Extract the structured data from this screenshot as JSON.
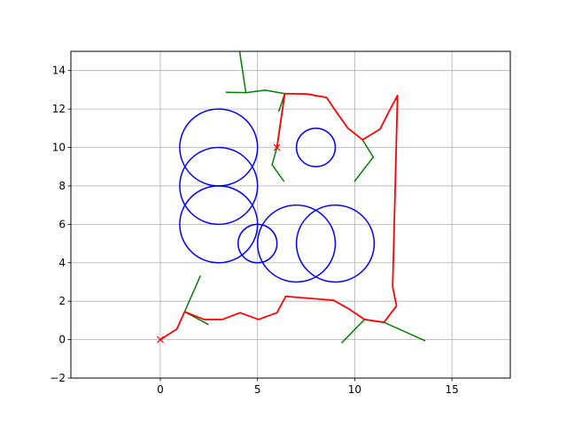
{
  "chart_data": {
    "type": "line",
    "title": "",
    "xlabel": "",
    "ylabel": "",
    "xlim": [
      -4.6,
      18.0
    ],
    "ylim": [
      -2,
      15
    ],
    "x_ticks": [
      0,
      5,
      10,
      15
    ],
    "y_ticks": [
      -2,
      0,
      2,
      4,
      6,
      8,
      10,
      12,
      14
    ],
    "x_tick_labels": [
      "0",
      "5",
      "10",
      "15"
    ],
    "y_tick_labels": [
      "−2",
      "0",
      "2",
      "4",
      "6",
      "8",
      "10",
      "12",
      "14"
    ],
    "grid": true,
    "legend": "none",
    "colors": {
      "circles": "#0000ff",
      "tree": "#008000",
      "path": "#ff0000",
      "grid": "#b0b0b0"
    },
    "obstacles": [
      {
        "cx": 3,
        "cy": 10,
        "r": 2
      },
      {
        "cx": 3,
        "cy": 8,
        "r": 2
      },
      {
        "cx": 3,
        "cy": 6,
        "r": 2
      },
      {
        "cx": 5,
        "cy": 5,
        "r": 1
      },
      {
        "cx": 7,
        "cy": 5,
        "r": 2
      },
      {
        "cx": 9,
        "cy": 5,
        "r": 2
      },
      {
        "cx": 8,
        "cy": 10,
        "r": 1
      }
    ],
    "start": {
      "x": 0,
      "y": 0
    },
    "goal": {
      "x": 6,
      "y": 10
    },
    "tree_edges": [
      [
        [
          4.05,
          15.2
        ],
        [
          4.4,
          12.85
        ]
      ],
      [
        [
          3.4,
          12.87
        ],
        [
          4.4,
          12.85
        ]
      ],
      [
        [
          4.4,
          12.85
        ],
        [
          5.4,
          12.98
        ]
      ],
      [
        [
          5.4,
          12.98
        ],
        [
          6.4,
          12.8
        ]
      ],
      [
        [
          6.4,
          12.8
        ],
        [
          6.1,
          11.9
        ]
      ],
      [
        [
          6.4,
          12.8
        ],
        [
          6.0,
          10.0
        ]
      ],
      [
        [
          6.0,
          10.0
        ],
        [
          5.75,
          9.1
        ]
      ],
      [
        [
          5.75,
          9.1
        ],
        [
          6.35,
          8.25
        ]
      ],
      [
        [
          10.4,
          10.4
        ],
        [
          10.95,
          9.5
        ]
      ],
      [
        [
          10.95,
          9.5
        ],
        [
          10.0,
          8.25
        ]
      ],
      [
        [
          1.25,
          1.45
        ],
        [
          2.05,
          3.3
        ]
      ],
      [
        [
          1.25,
          1.45
        ],
        [
          2.45,
          0.8
        ]
      ],
      [
        [
          10.5,
          1.05
        ],
        [
          9.35,
          -0.15
        ]
      ],
      [
        [
          11.5,
          0.9
        ],
        [
          13.6,
          -0.05
        ]
      ]
    ],
    "path": [
      [
        0.0,
        0.0
      ],
      [
        0.85,
        0.55
      ],
      [
        1.25,
        1.45
      ],
      [
        2.25,
        1.05
      ],
      [
        3.2,
        1.05
      ],
      [
        4.1,
        1.4
      ],
      [
        5.05,
        1.05
      ],
      [
        6.0,
        1.4
      ],
      [
        6.45,
        2.25
      ],
      [
        8.9,
        2.05
      ],
      [
        9.7,
        1.6
      ],
      [
        10.5,
        1.05
      ],
      [
        11.5,
        0.9
      ],
      [
        12.15,
        1.75
      ],
      [
        11.95,
        2.75
      ],
      [
        12.2,
        12.7
      ],
      [
        11.75,
        11.85
      ],
      [
        11.3,
        10.95
      ],
      [
        10.4,
        10.4
      ],
      [
        9.65,
        11.0
      ],
      [
        9.05,
        11.85
      ],
      [
        8.55,
        12.6
      ],
      [
        7.55,
        12.78
      ],
      [
        6.4,
        12.8
      ],
      [
        6.0,
        10.0
      ]
    ]
  }
}
